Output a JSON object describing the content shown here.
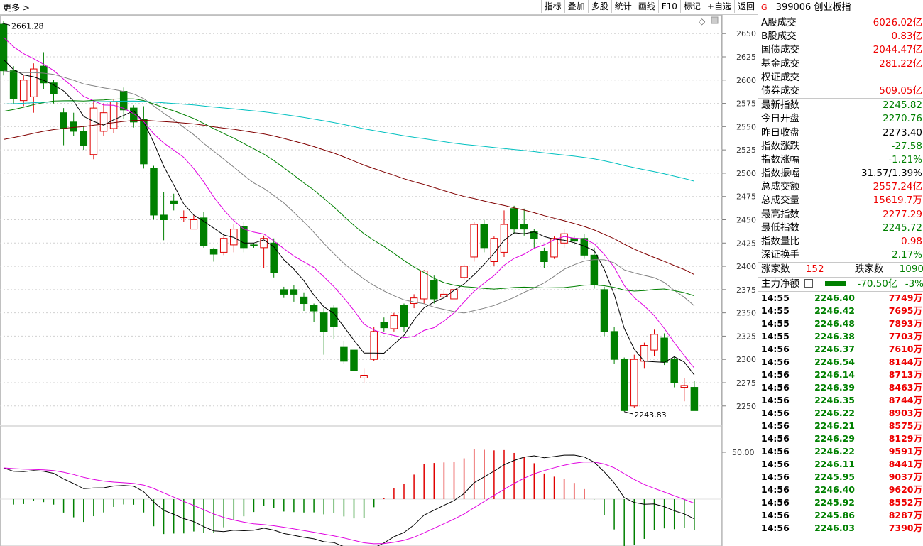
{
  "topbar": {
    "more": "更多 >",
    "tabs": [
      "指标",
      "叠加",
      "多股",
      "统计",
      "画线",
      "F10",
      "标记",
      "+自选",
      "返回"
    ]
  },
  "index": {
    "g": "G",
    "code": "399006",
    "name": "创业板指"
  },
  "turnover": [
    {
      "label": "A股成交",
      "value": "6026.02",
      "unit": "亿"
    },
    {
      "label": "B股成交",
      "value": "0.83",
      "unit": "亿"
    },
    {
      "label": "国债成交",
      "value": "2044.47",
      "unit": "亿"
    },
    {
      "label": "基金成交",
      "value": "281.22",
      "unit": "亿"
    },
    {
      "label": "权证成交",
      "value": "",
      "unit": ""
    },
    {
      "label": "债券成交",
      "value": "509.05",
      "unit": "亿"
    }
  ],
  "stats": [
    {
      "label": "最新指数",
      "value": "2245.82",
      "color": "grn"
    },
    {
      "label": "今日开盘",
      "value": "2270.76",
      "color": "grn"
    },
    {
      "label": "昨日收盘",
      "value": "2273.40",
      "color": "blk"
    },
    {
      "label": "指数涨跌",
      "value": "-27.58",
      "color": "grn"
    },
    {
      "label": "指数涨幅",
      "value": "-1.21%",
      "color": "grn"
    },
    {
      "label": "指数振幅",
      "value": "31.57/1.39%",
      "color": "blk"
    },
    {
      "label": "总成交额",
      "value": "2557.24亿",
      "color": "red"
    },
    {
      "label": "总成交量",
      "value": "15619.7万",
      "color": "red"
    },
    {
      "label": "最高指数",
      "value": "2277.29",
      "color": "red"
    },
    {
      "label": "最低指数",
      "value": "2245.72",
      "color": "grn"
    },
    {
      "label": "指数量比",
      "value": "0.98",
      "color": "red"
    },
    {
      "label": "深证换手",
      "value": "2.17%",
      "color": "grn"
    }
  ],
  "breadth": {
    "up_label": "涨家数",
    "up": "152",
    "down_label": "跌家数",
    "down": "1090"
  },
  "mainflow": {
    "label": "主力净额",
    "value": "-70.50亿",
    "pct": "-3%"
  },
  "ticks": [
    {
      "t": "14:55",
      "p": "2246.40",
      "v": "7749万"
    },
    {
      "t": "14:55",
      "p": "2246.42",
      "v": "7695万"
    },
    {
      "t": "14:55",
      "p": "2246.48",
      "v": "7893万"
    },
    {
      "t": "14:55",
      "p": "2246.38",
      "v": "7703万"
    },
    {
      "t": "14:56",
      "p": "2246.37",
      "v": "7610万"
    },
    {
      "t": "14:56",
      "p": "2246.54",
      "v": "8144万"
    },
    {
      "t": "14:56",
      "p": "2246.14",
      "v": "8713万"
    },
    {
      "t": "14:56",
      "p": "2246.39",
      "v": "8463万"
    },
    {
      "t": "14:56",
      "p": "2246.35",
      "v": "8744万"
    },
    {
      "t": "14:56",
      "p": "2246.22",
      "v": "8903万"
    },
    {
      "t": "14:56",
      "p": "2246.21",
      "v": "8575万"
    },
    {
      "t": "14:56",
      "p": "2246.29",
      "v": "8129万"
    },
    {
      "t": "14:56",
      "p": "2246.22",
      "v": "9591万"
    },
    {
      "t": "14:56",
      "p": "2246.11",
      "v": "8441万"
    },
    {
      "t": "14:56",
      "p": "2245.95",
      "v": "9037万"
    },
    {
      "t": "14:56",
      "p": "2246.40",
      "v": "9620万"
    },
    {
      "t": "14:56",
      "p": "2245.92",
      "v": "8552万"
    },
    {
      "t": "14:56",
      "p": "2245.86",
      "v": "8287万"
    },
    {
      "t": "14:56",
      "p": "2246.03",
      "v": "7390万"
    }
  ],
  "colors": {
    "up": "#e00000",
    "down": "#008000",
    "ma5": "#000000",
    "ma10": "#e000e0",
    "ma20": "#808080",
    "ma30": "#008000",
    "ma60": "#800000",
    "ma120": "#00c0c0"
  },
  "chart_data": {
    "type": "candlestick",
    "ylim": [
      2230,
      2670
    ],
    "yticks": [
      2250,
      2275,
      2300,
      2325,
      2350,
      2375,
      2400,
      2425,
      2450,
      2475,
      2500,
      2525,
      2550,
      2575,
      2600,
      2625,
      2650
    ],
    "annotations": [
      {
        "text": "2661.28",
        "value": 2661.28
      },
      {
        "text": "2243.83",
        "value": 2243.83
      }
    ],
    "candles": [
      [
        2660,
        2610,
        2663,
        2605
      ],
      [
        2610,
        2580,
        2615,
        2575
      ],
      [
        2578,
        2600,
        2605,
        2572
      ],
      [
        2582,
        2612,
        2618,
        2565
      ],
      [
        2615,
        2597,
        2630,
        2590
      ],
      [
        2597,
        2585,
        2600,
        2575
      ],
      [
        2565,
        2548,
        2570,
        2530
      ],
      [
        2555,
        2545,
        2565,
        2540
      ],
      [
        2545,
        2530,
        2550,
        2525
      ],
      [
        2520,
        2570,
        2578,
        2515
      ],
      [
        2545,
        2565,
        2575,
        2540
      ],
      [
        2548,
        2577,
        2580,
        2543
      ],
      [
        2588,
        2568,
        2592,
        2558
      ],
      [
        2570,
        2555,
        2573,
        2549
      ],
      [
        2558,
        2510,
        2572,
        2505
      ],
      [
        2505,
        2455,
        2508,
        2450
      ],
      [
        2455,
        2450,
        2480,
        2428
      ],
      [
        2470,
        2467,
        2478,
        2460
      ],
      [
        2453,
        2453,
        2460,
        2448
      ],
      [
        2440,
        2450,
        2455,
        2440
      ],
      [
        2452,
        2422,
        2458,
        2420
      ],
      [
        2418,
        2413,
        2420,
        2405
      ],
      [
        2415,
        2430,
        2433,
        2412
      ],
      [
        2423,
        2440,
        2445,
        2415
      ],
      [
        2443,
        2420,
        2448,
        2415
      ],
      [
        2423,
        2422,
        2425,
        2420
      ],
      [
        2420,
        2430,
        2433,
        2398
      ],
      [
        2425,
        2393,
        2430,
        2388
      ],
      [
        2375,
        2370,
        2378,
        2366
      ],
      [
        2375,
        2370,
        2380,
        2362
      ],
      [
        2367,
        2360,
        2372,
        2352
      ],
      [
        2358,
        2352,
        2360,
        2340
      ],
      [
        2350,
        2330,
        2355,
        2305
      ],
      [
        2355,
        2335,
        2358,
        2322
      ],
      [
        2313,
        2298,
        2320,
        2295
      ],
      [
        2310,
        2288,
        2315,
        2283
      ],
      [
        2280,
        2283,
        2290,
        2275
      ],
      [
        2300,
        2330,
        2335,
        2298
      ],
      [
        2340,
        2334,
        2345,
        2330
      ],
      [
        2333,
        2347,
        2350,
        2330
      ],
      [
        2358,
        2335,
        2360,
        2330
      ],
      [
        2360,
        2366,
        2370,
        2355
      ],
      [
        2365,
        2395,
        2396,
        2360
      ],
      [
        2385,
        2365,
        2390,
        2360
      ],
      [
        2367,
        2370,
        2375,
        2365
      ],
      [
        2365,
        2375,
        2380,
        2360
      ],
      [
        2388,
        2400,
        2402,
        2385
      ],
      [
        2410,
        2445,
        2448,
        2405
      ],
      [
        2445,
        2420,
        2450,
        2415
      ],
      [
        2405,
        2430,
        2432,
        2400
      ],
      [
        2415,
        2445,
        2460,
        2410
      ],
      [
        2462,
        2440,
        2465,
        2435
      ],
      [
        2445,
        2440,
        2462,
        2433
      ],
      [
        2437,
        2430,
        2440,
        2420
      ],
      [
        2416,
        2405,
        2420,
        2398
      ],
      [
        2410,
        2430,
        2432,
        2408
      ],
      [
        2425,
        2435,
        2440,
        2420
      ],
      [
        2430,
        2427,
        2433,
        2423
      ],
      [
        2430,
        2412,
        2435,
        2408
      ],
      [
        2412,
        2380,
        2420,
        2376
      ],
      [
        2375,
        2330,
        2378,
        2325
      ],
      [
        2330,
        2300,
        2335,
        2295
      ],
      [
        2300,
        2245,
        2302,
        2244
      ],
      [
        2250,
        2300,
        2305,
        2248
      ],
      [
        2298,
        2315,
        2318,
        2290
      ],
      [
        2310,
        2327,
        2332,
        2304
      ],
      [
        2323,
        2297,
        2328,
        2294
      ],
      [
        2300,
        2275,
        2303,
        2270
      ],
      [
        2270,
        2272,
        2280,
        2255
      ],
      [
        2270,
        2245,
        2277,
        2245
      ]
    ],
    "indicator": {
      "ytick": "50.00"
    }
  }
}
